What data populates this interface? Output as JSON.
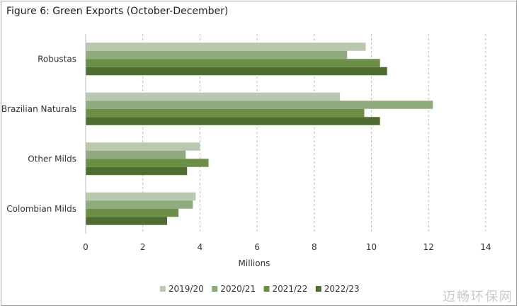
{
  "chart_data": {
    "type": "bar",
    "orientation": "horizontal",
    "title": "Figure 6: Green Exports (October-December)",
    "xlabel": "Millions",
    "ylabel": "",
    "xlim": [
      0,
      14
    ],
    "xticks": [
      0,
      2,
      4,
      6,
      8,
      10,
      12,
      14
    ],
    "grid": "vertical-dashed",
    "legend_position": "bottom",
    "categories": [
      "Robustas",
      "Brazilian Naturals",
      "Other Milds",
      "Colombian Milds"
    ],
    "series": [
      {
        "name": "2019/20",
        "color": "#bac8b0",
        "values": [
          9.8,
          8.9,
          4.0,
          3.85
        ]
      },
      {
        "name": "2020/21",
        "color": "#8faa7c",
        "values": [
          9.15,
          12.15,
          3.5,
          3.75
        ]
      },
      {
        "name": "2021/22",
        "color": "#6b9045",
        "values": [
          10.3,
          9.75,
          4.3,
          3.25
        ]
      },
      {
        "name": "2022/23",
        "color": "#4f6d30",
        "values": [
          10.55,
          10.3,
          3.55,
          2.85
        ]
      }
    ]
  },
  "watermark": "迈畅环保网"
}
